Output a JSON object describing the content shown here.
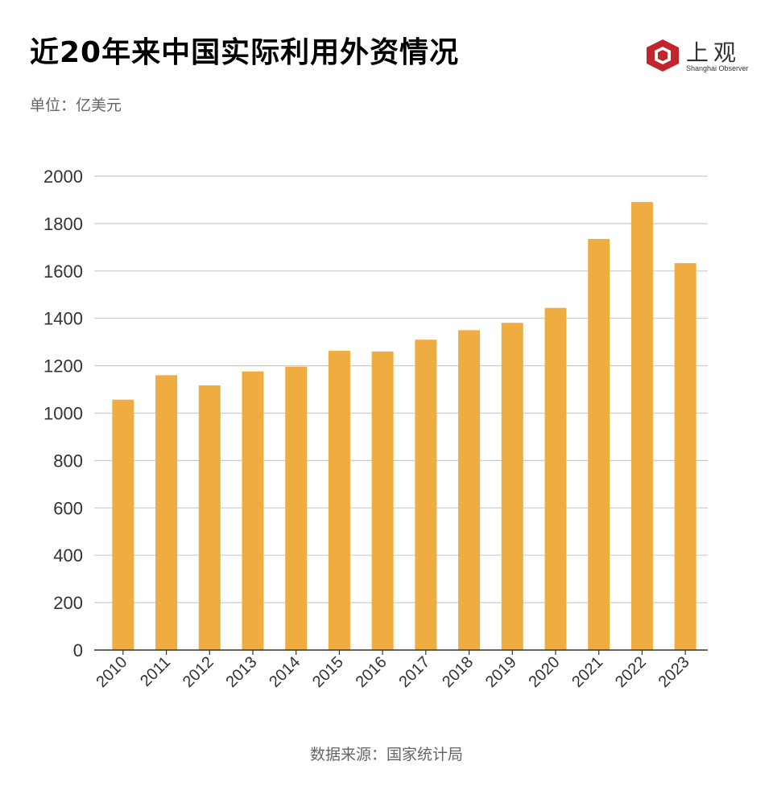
{
  "title": "近20年来中国实际利用外资情况",
  "unit_label": "单位：亿美元",
  "source_label": "数据来源：国家统计局",
  "logo": {
    "name": "上观",
    "sub": "Shanghai Observer",
    "icon": "hexagon-logo-icon",
    "color": "#c0272d"
  },
  "colors": {
    "bar": "#efad41",
    "grid": "#cccccc",
    "axis": "#333333"
  },
  "chart_data": {
    "type": "bar",
    "categories": [
      "2010",
      "2011",
      "2012",
      "2013",
      "2014",
      "2015",
      "2016",
      "2017",
      "2018",
      "2019",
      "2020",
      "2021",
      "2022",
      "2023"
    ],
    "values": [
      1057,
      1160,
      1117,
      1176,
      1196,
      1263,
      1260,
      1310,
      1350,
      1381,
      1444,
      1735,
      1891,
      1633
    ],
    "yticks": [
      0,
      200,
      400,
      600,
      800,
      1000,
      1200,
      1400,
      1600,
      1800,
      2000
    ],
    "ylim": [
      0,
      2000
    ],
    "grid": true,
    "xlabel": "",
    "ylabel": ""
  }
}
